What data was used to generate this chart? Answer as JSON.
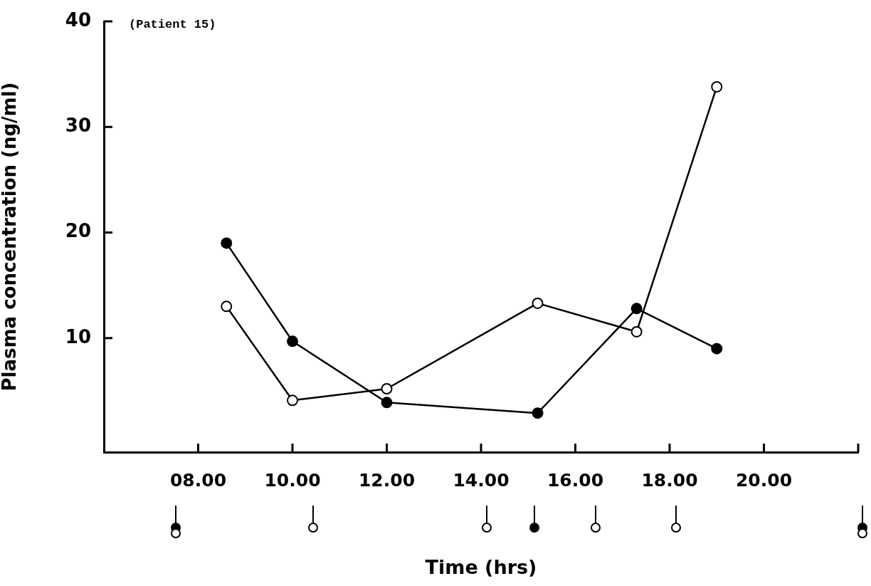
{
  "chart_data": {
    "type": "line",
    "xlabel": "Time (hrs)",
    "ylabel": "Plasma concentration (ng/ml)",
    "annotations": [
      "(Patient 15)"
    ],
    "xlim": [
      6,
      22
    ],
    "ylim": [
      -0.8,
      40
    ],
    "xticks": [
      {
        "value": 8,
        "label": "08.00"
      },
      {
        "value": 10,
        "label": "10.00"
      },
      {
        "value": 12,
        "label": "12.00"
      },
      {
        "value": 14,
        "label": "14.00"
      },
      {
        "value": 16,
        "label": "16.00"
      },
      {
        "value": 18,
        "label": "18.00"
      },
      {
        "value": 20,
        "label": "20.00"
      },
      {
        "value": 22,
        "label": null
      }
    ],
    "yticks": [
      10,
      20,
      30,
      40
    ],
    "marker": "circle",
    "line_style": "solid",
    "series": [
      {
        "color": "#000000",
        "x": [
          8.6,
          10.0,
          12.0,
          15.2,
          17.3,
          19.0
        ],
        "values": [
          19.0,
          9.7,
          3.9,
          2.9,
          12.8,
          9.0
        ]
      },
      {
        "color": "#ffffff",
        "x": [
          8.6,
          10.0,
          12.0,
          15.2,
          17.3,
          19.0
        ],
        "values": [
          13.0,
          4.1,
          5.2,
          13.3,
          10.6,
          33.8
        ]
      }
    ]
  }
}
